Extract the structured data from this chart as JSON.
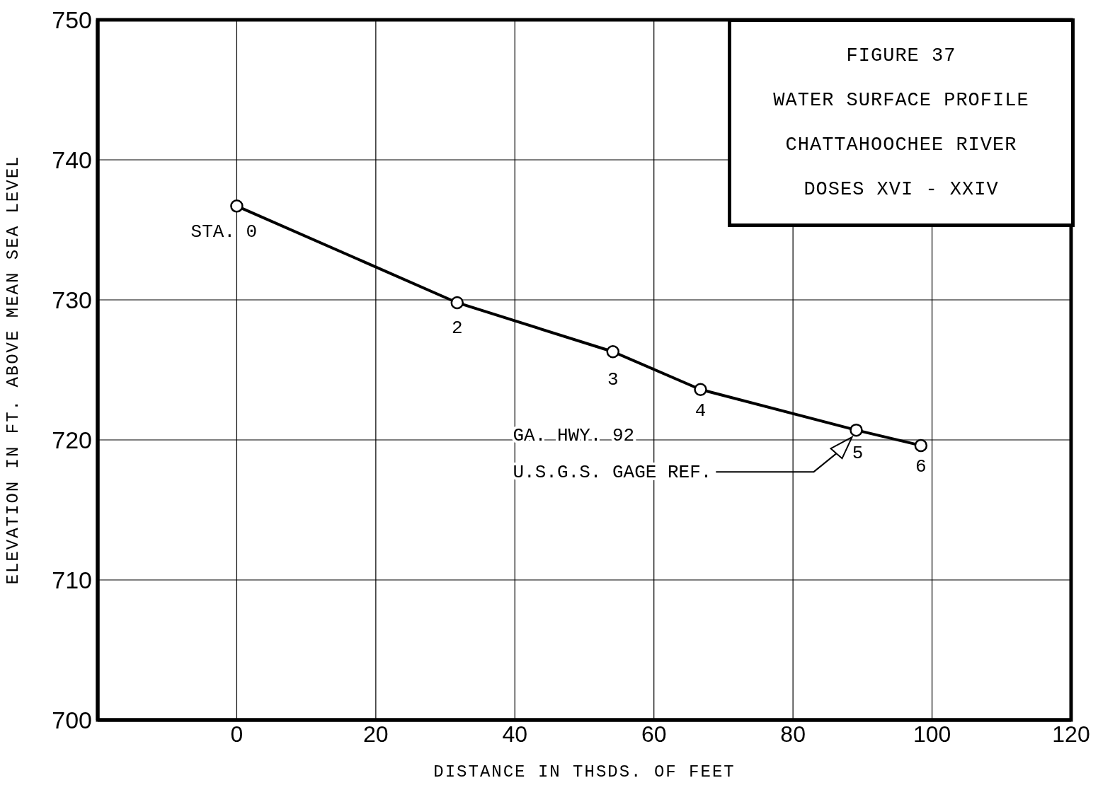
{
  "chart_data": {
    "type": "line",
    "title": "FIGURE 37",
    "subtitle": "WATER SURFACE PROFILE\nCHATTAHOOCHEE RIVER\nDOSES XVI - XXIV",
    "xlabel": "DISTANCE IN THSDS. OF FEET",
    "ylabel": "ELEVATION IN FT. ABOVE MEAN SEA LEVEL",
    "x": [
      0,
      31.7,
      54.1,
      66.7,
      89.1,
      98.4
    ],
    "series": [
      {
        "color": "#000000",
        "values": [
          736.7,
          729.8,
          726.3,
          723.6,
          720.7,
          719.6
        ]
      }
    ],
    "xlim": [
      -20,
      120
    ],
    "xticks": [
      0,
      20,
      40,
      60,
      80,
      100,
      120
    ],
    "ylim": [
      700,
      750
    ],
    "yticks": [
      700,
      710,
      720,
      730,
      740,
      750
    ],
    "grid": true,
    "marker": "circle",
    "line_style": "solid",
    "annotations": [
      {
        "text": "STA. 0",
        "x": 0,
        "y": 736.7
      },
      {
        "text": "2",
        "x": 31.7,
        "y": 729.8
      },
      {
        "text": "3",
        "x": 54.1,
        "y": 726.3
      },
      {
        "text": "4",
        "x": 66.7,
        "y": 723.6
      },
      {
        "text": "5",
        "x": 89.1,
        "y": 720.7
      },
      {
        "text": "6",
        "x": 98.4,
        "y": 719.6
      },
      "GA. HWY. 92",
      "U.S.G.S. GAGE REF."
    ]
  }
}
